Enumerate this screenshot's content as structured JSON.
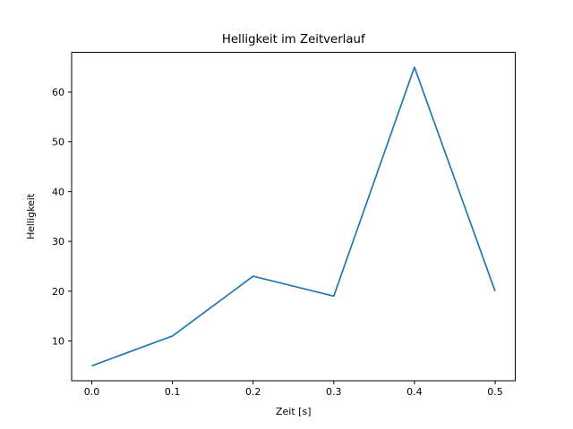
{
  "chart_data": {
    "type": "line",
    "title": "Helligkeit im Zeitverlauf",
    "xlabel": "Zeit [s]",
    "ylabel": "Helligkeit",
    "x": [
      0.0,
      0.1,
      0.2,
      0.3,
      0.4,
      0.5
    ],
    "y": [
      5,
      11,
      23,
      19,
      65,
      20
    ],
    "x_tick_values": [
      0.0,
      0.1,
      0.2,
      0.3,
      0.4,
      0.5
    ],
    "x_tick_labels": [
      "0.0",
      "0.1",
      "0.2",
      "0.3",
      "0.4",
      "0.5"
    ],
    "y_tick_values": [
      10,
      20,
      30,
      40,
      50,
      60
    ],
    "y_tick_labels": [
      "10",
      "20",
      "30",
      "40",
      "50",
      "60"
    ],
    "xlim": [
      -0.025,
      0.525
    ],
    "ylim": [
      2,
      68
    ],
    "grid": false,
    "legend": "none",
    "line_color": "#1f77b4",
    "spine_color": "#000000",
    "background_color": "#ffffff",
    "text_color": "#000000"
  }
}
